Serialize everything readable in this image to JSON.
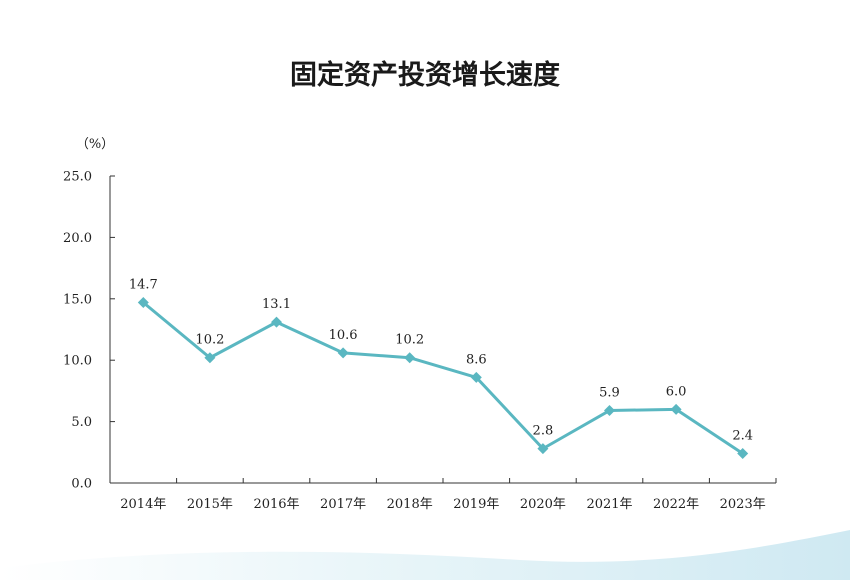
{
  "colors": {
    "line": "#5ab7c1",
    "marker": "#5ab7c1",
    "axis": "#333333",
    "wave": "#dbeff6"
  },
  "chart_data": {
    "type": "line",
    "title": "固定资产投资增长速度",
    "unit": "（%）",
    "categories": [
      "2014年",
      "2015年",
      "2016年",
      "2017年",
      "2018年",
      "2019年",
      "2020年",
      "2021年",
      "2022年",
      "2023年"
    ],
    "series": [
      {
        "values": [
          14.7,
          10.2,
          13.1,
          10.6,
          10.2,
          8.6,
          2.8,
          5.9,
          6.0,
          2.4
        ]
      }
    ],
    "data_labels": [
      "14.7",
      "10.2",
      "13.1",
      "10.6",
      "10.2",
      "8.6",
      "2.8",
      "5.9",
      "6.0",
      "2.4"
    ],
    "ylim": [
      0,
      25
    ],
    "yticks": [
      "0.0",
      "5.0",
      "10.0",
      "15.0",
      "20.0",
      "25.0"
    ],
    "grid": false,
    "marker": "diamond"
  }
}
